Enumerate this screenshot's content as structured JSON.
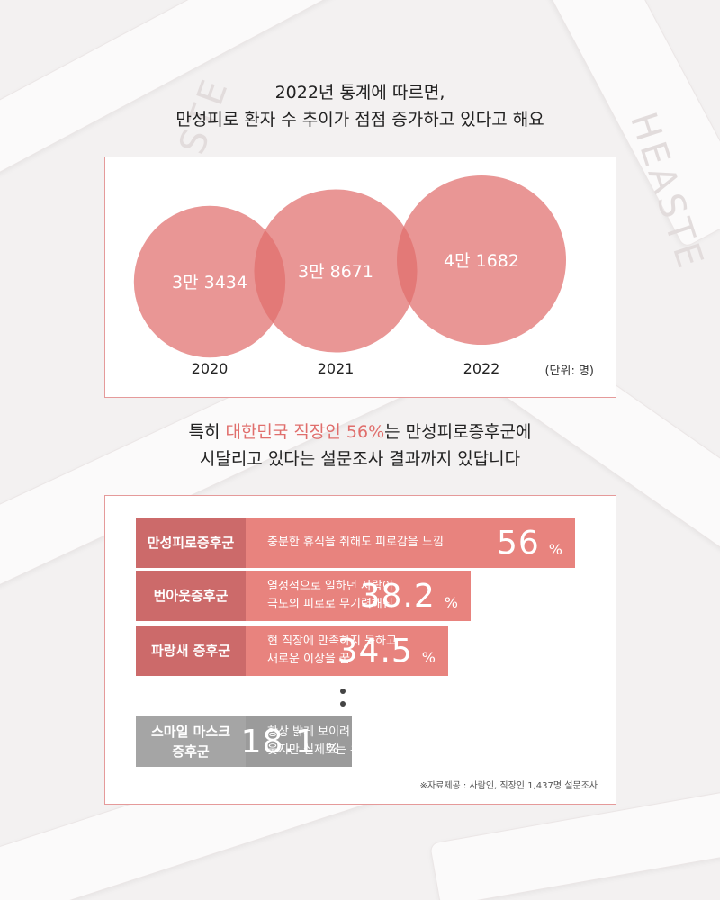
{
  "intro": {
    "line1": "2022년 통계에 따르면,",
    "line2": "만성피로 환자 수 추이가 점점 증가하고 있다고 해요"
  },
  "chart_data": [
    {
      "type": "bubble",
      "categories": [
        "2020",
        "2021",
        "2022"
      ],
      "values": [
        33434,
        38671,
        41682
      ],
      "value_labels": [
        "3만 3434",
        "3만 8671",
        "4만 1682"
      ],
      "unit_label": "(단위: 명)",
      "color": "#e06e6c"
    },
    {
      "type": "bar",
      "orientation": "horizontal",
      "categories": [
        "만성피로증후군",
        "번아웃증후군",
        "파랑새 증후군",
        "스마일 마스크 증후군"
      ],
      "category_lines": [
        [
          "만성피로증후군"
        ],
        [
          "번아웃증후군"
        ],
        [
          "파랑새 증후군"
        ],
        [
          "스마일 마스크",
          "증후군"
        ]
      ],
      "descriptions": [
        [
          "충분한 휴식을 취해도 피로감을 느낌"
        ],
        [
          "열정적으로 일하던 사람이",
          "극도의 피로로 무기력해짐"
        ],
        [
          "현 직장에 만족하지 못하고",
          "새로운 이상을 꿈"
        ],
        [
          "항상 밝게 보이려 겉으론",
          "웃지만 실제로는 우울함"
        ]
      ],
      "values": [
        56,
        38.2,
        34.5,
        18.1
      ],
      "value_labels": [
        "56",
        "38.2",
        "34.5",
        "18.1"
      ],
      "unit": "%",
      "colors": {
        "highlight_bar": "#e8837e",
        "highlight_cat": "#cc6a6a",
        "muted_bar": "#9b9b9b",
        "muted_cat": "#a5a5a5"
      }
    }
  ],
  "finding": {
    "part1": "특히 ",
    "highlight": "대한민국 직장인 56%",
    "part2": "는 만성피로증후군에",
    "line2": "시달리고 있다는 설문조사 결과까지 있답니다"
  },
  "source_note": "※자료제공 : 사람인, 직장인 1,437명 설문조사",
  "background": {
    "watermark": "HEASTE"
  }
}
